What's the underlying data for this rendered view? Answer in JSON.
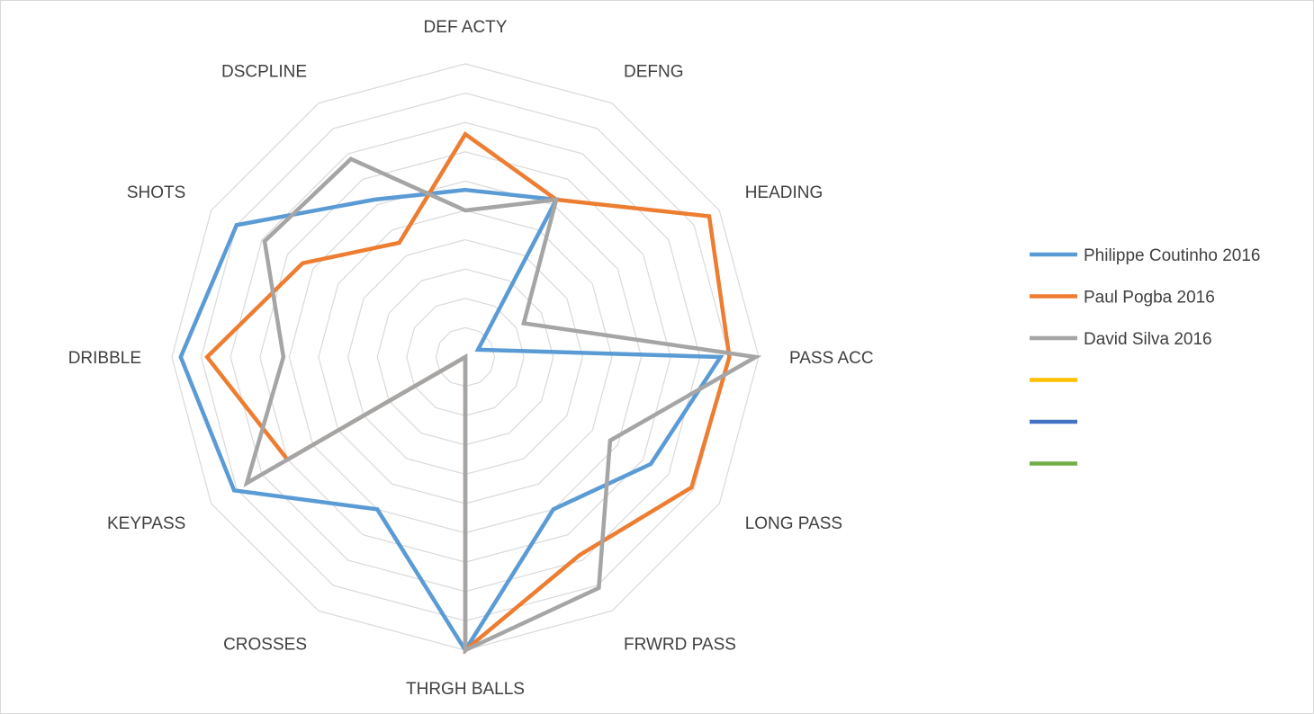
{
  "chart_data": {
    "type": "radar",
    "title": "",
    "axes": [
      "DEF ACTY",
      "DEFNG",
      "HEADING",
      "PASS ACC",
      "LONG PASS",
      "FRWRD PASS",
      "THRGH BALLS",
      "CROSSES",
      "KEYPASS",
      "DRIBBLE",
      "SHOTS",
      "DSCPLINE"
    ],
    "range": [
      0,
      10
    ],
    "grid": true,
    "rings": 10,
    "legend_position": "right",
    "series": [
      {
        "name": "Philippe Coutinho 2016",
        "color": "#5B9BD5",
        "values": [
          5.7,
          6.2,
          0.5,
          8.7,
          7.3,
          6.0,
          10.0,
          6.0,
          9.1,
          9.7,
          9.0,
          6.2
        ]
      },
      {
        "name": "Paul Pogba 2016",
        "color": "#ED7D31",
        "values": [
          7.6,
          6.2,
          9.6,
          9.0,
          8.9,
          7.8,
          10.0,
          0.0,
          7.0,
          8.8,
          6.4,
          4.5
        ]
      },
      {
        "name": "David Silva 2016",
        "color": "#A5A5A5",
        "values": [
          5.0,
          6.2,
          2.3,
          9.9,
          5.7,
          9.1,
          10.0,
          0.0,
          8.6,
          6.2,
          7.9,
          7.8
        ]
      },
      {
        "name": "",
        "color": "#FFC000",
        "values": []
      },
      {
        "name": "",
        "color": "#4472C4",
        "values": []
      },
      {
        "name": "",
        "color": "#70AD47",
        "values": []
      }
    ]
  }
}
